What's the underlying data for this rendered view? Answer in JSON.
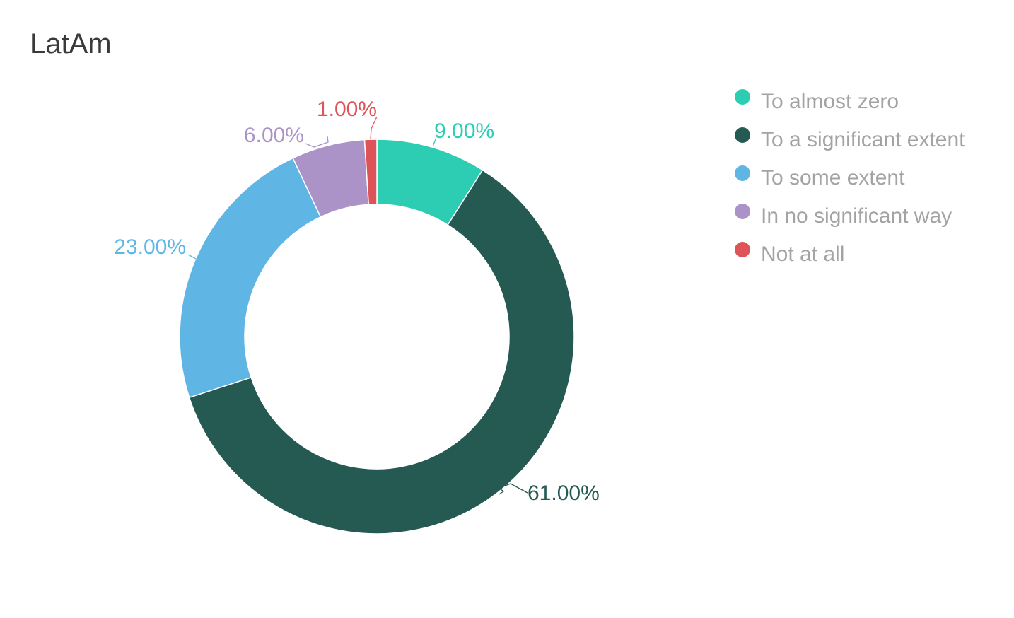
{
  "chart_data": {
    "type": "pie",
    "title": "LatAm",
    "donut": true,
    "legend_position": "right",
    "series": [
      {
        "name": "To almost zero",
        "value": 9,
        "label": "9.00%",
        "color": "#2ccdb3"
      },
      {
        "name": "To a significant extent",
        "value": 61,
        "label": "61.00%",
        "color": "#255a53"
      },
      {
        "name": "To some extent",
        "value": 23,
        "label": "23.00%",
        "color": "#5fb6e4"
      },
      {
        "name": "In no significant way",
        "value": 6,
        "label": "6.00%",
        "color": "#ab93c8"
      },
      {
        "name": "Not at all",
        "value": 1,
        "label": "1.00%",
        "color": "#dd5357"
      }
    ]
  }
}
